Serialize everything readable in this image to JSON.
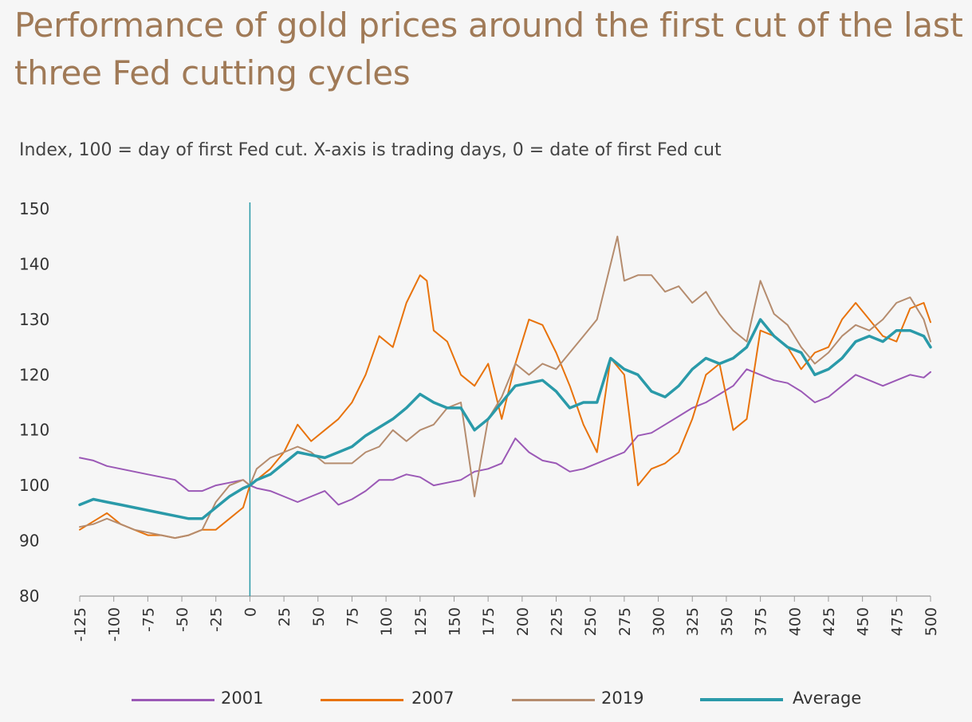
{
  "title": "Performance of gold prices around the first cut of the last three Fed cutting cycles",
  "subtitle": "Index, 100 = day of first Fed cut. X-axis is trading days, 0 = date of first Fed cut",
  "colors": {
    "s2001": "#9b59b6",
    "s2007": "#e8730c",
    "s2019": "#b58c6e",
    "average": "#2a9aa9",
    "axis": "#9a9a9a",
    "cut_line": "#2a9aa9"
  },
  "chart_data": {
    "type": "line",
    "title": "Performance of gold prices around the first cut of the last three Fed cutting cycles",
    "subtitle": "Index, 100 = day of first Fed cut. X-axis is trading days, 0 = date of first Fed cut",
    "xlabel": "",
    "ylabel": "",
    "xlim": [
      -125,
      500
    ],
    "ylim": [
      80,
      150
    ],
    "xticks": [
      -125,
      -100,
      -75,
      -50,
      -25,
      0,
      25,
      50,
      75,
      100,
      125,
      150,
      175,
      200,
      225,
      250,
      275,
      300,
      325,
      350,
      375,
      400,
      425,
      450,
      475,
      500
    ],
    "yticks": [
      80,
      90,
      100,
      110,
      120,
      130,
      140,
      150
    ],
    "grid": false,
    "vertical_line_at": 0,
    "legend_position": "bottom",
    "series": [
      {
        "name": "2001",
        "x": [
          -125,
          -115,
          -105,
          -95,
          -85,
          -75,
          -65,
          -55,
          -45,
          -35,
          -25,
          -15,
          -5,
          0,
          5,
          15,
          25,
          35,
          45,
          55,
          65,
          75,
          85,
          95,
          105,
          115,
          125,
          135,
          145,
          155,
          165,
          175,
          185,
          195,
          205,
          215,
          225,
          235,
          245,
          255,
          265,
          275,
          285,
          295,
          305,
          315,
          325,
          335,
          345,
          355,
          365,
          375,
          385,
          395,
          405,
          415,
          425,
          435,
          445,
          455,
          465,
          475,
          485,
          495,
          500
        ],
        "values": [
          105,
          104.5,
          103.5,
          103,
          102.5,
          102,
          101.5,
          101,
          99,
          99,
          100,
          100.5,
          101,
          100,
          99.5,
          99,
          98,
          97,
          98,
          99,
          96.5,
          97.5,
          99,
          101,
          101,
          102,
          101.5,
          100,
          100.5,
          101,
          102.5,
          103,
          104,
          108.5,
          106,
          104.5,
          104,
          102.5,
          103,
          104,
          105,
          106,
          109,
          109.5,
          111,
          112.5,
          114,
          115,
          116.5,
          118,
          121,
          120,
          119,
          118.5,
          117,
          115,
          116,
          118,
          120,
          119,
          118,
          119,
          120,
          119.5,
          120.5
        ]
      },
      {
        "name": "2007",
        "x": [
          -125,
          -115,
          -105,
          -95,
          -85,
          -75,
          -65,
          -55,
          -45,
          -35,
          -25,
          -15,
          -5,
          0,
          5,
          15,
          25,
          35,
          45,
          55,
          65,
          75,
          85,
          95,
          105,
          115,
          125,
          130,
          135,
          145,
          155,
          165,
          175,
          185,
          195,
          205,
          215,
          225,
          235,
          245,
          255,
          265,
          275,
          285,
          295,
          305,
          315,
          325,
          335,
          345,
          355,
          365,
          375,
          385,
          395,
          405,
          415,
          425,
          435,
          445,
          455,
          465,
          475,
          485,
          495,
          500
        ],
        "values": [
          92,
          93.5,
          95,
          93,
          92,
          91,
          91,
          90.5,
          91,
          92,
          92,
          94,
          96,
          100,
          101,
          103,
          106,
          111,
          108,
          110,
          112,
          115,
          120,
          127,
          125,
          133,
          138,
          137,
          128,
          126,
          120,
          118,
          122,
          112,
          122,
          130,
          129,
          124,
          118,
          111,
          106,
          123,
          120,
          100,
          103,
          104,
          106,
          112,
          120,
          122,
          110,
          112,
          128,
          127,
          125,
          121,
          124,
          125,
          130,
          133,
          130,
          127,
          126,
          132,
          133,
          129.5
        ]
      },
      {
        "name": "2019",
        "x": [
          -125,
          -115,
          -105,
          -95,
          -85,
          -75,
          -65,
          -55,
          -45,
          -35,
          -25,
          -15,
          -5,
          0,
          5,
          15,
          25,
          35,
          45,
          55,
          65,
          75,
          85,
          95,
          105,
          115,
          125,
          135,
          145,
          155,
          165,
          175,
          185,
          195,
          205,
          215,
          225,
          235,
          245,
          255,
          265,
          270,
          275,
          285,
          295,
          305,
          315,
          325,
          335,
          345,
          355,
          365,
          375,
          385,
          395,
          405,
          415,
          425,
          435,
          445,
          455,
          465,
          475,
          485,
          495,
          500
        ],
        "values": [
          92.5,
          93,
          94,
          93,
          92,
          91.5,
          91,
          90.5,
          91,
          92,
          97,
          100,
          101,
          100,
          103,
          105,
          106,
          107,
          106,
          104,
          104,
          104,
          106,
          107,
          110,
          108,
          110,
          111,
          114,
          115,
          98,
          112,
          116,
          122,
          120,
          122,
          121,
          124,
          127,
          130,
          140,
          145,
          137,
          138,
          138,
          135,
          136,
          133,
          135,
          131,
          128,
          126,
          137,
          131,
          129,
          125,
          122,
          124,
          127,
          129,
          128,
          130,
          133,
          134,
          130,
          126
        ]
      },
      {
        "name": "Average",
        "x": [
          -125,
          -115,
          -105,
          -95,
          -85,
          -75,
          -65,
          -55,
          -45,
          -35,
          -25,
          -15,
          -5,
          0,
          5,
          15,
          25,
          35,
          45,
          55,
          65,
          75,
          85,
          95,
          105,
          115,
          125,
          135,
          145,
          155,
          165,
          175,
          185,
          195,
          205,
          215,
          225,
          235,
          245,
          255,
          265,
          275,
          285,
          295,
          305,
          315,
          325,
          335,
          345,
          355,
          365,
          375,
          385,
          395,
          405,
          415,
          425,
          435,
          445,
          455,
          465,
          475,
          485,
          495,
          500
        ],
        "values": [
          96.5,
          97.5,
          97,
          96.5,
          96,
          95.5,
          95,
          94.5,
          94,
          94,
          96,
          98,
          99.5,
          100,
          101,
          102,
          104,
          106,
          105.5,
          105,
          106,
          107,
          109,
          110.5,
          112,
          114,
          116.5,
          115,
          114,
          114,
          110,
          112,
          115,
          118,
          118.5,
          119,
          117,
          114,
          115,
          115,
          123,
          121,
          120,
          117,
          116,
          118,
          121,
          123,
          122,
          123,
          125,
          130,
          127,
          125,
          124,
          120,
          121,
          123,
          126,
          127,
          126,
          128,
          128,
          127,
          125
        ]
      }
    ]
  }
}
